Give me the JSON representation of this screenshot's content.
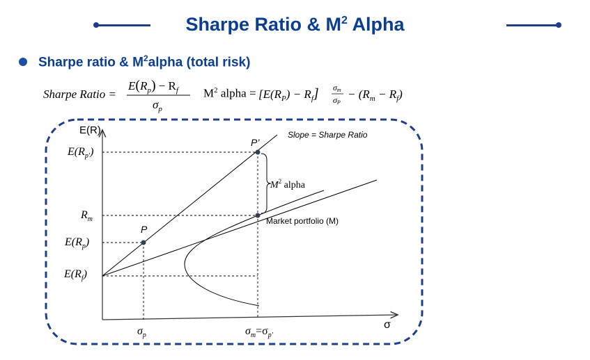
{
  "header": {
    "title_prefix": "Sharpe Ratio & M",
    "title_sup": "2",
    "title_suffix": " Alpha",
    "accent_color": "#0b3d91"
  },
  "section": {
    "heading_prefix": "Sharpe ratio & M",
    "heading_sup": "2",
    "heading_suffix": "alpha (total risk)"
  },
  "formulas": {
    "sharpe_lhs": "Sharpe Ratio =",
    "sharpe_num_E": "E",
    "sharpe_num_R": "R",
    "sharpe_num_p": "p",
    "sharpe_num_minus": "− R",
    "sharpe_num_f": "f",
    "sharpe_den": "σ",
    "sharpe_den_sub": "p",
    "m2_prefix": "M",
    "m2_sup": "2",
    "m2_suffix": " alpha =",
    "m2_bracket": "[E(R",
    "m2_bracket_sub": "P",
    "m2_bracket_mid": ") − R",
    "m2_bracket_sub2": "f",
    "m2_bracket_end": "]",
    "m2_frac_num": "σ",
    "m2_frac_num_sub": "m",
    "m2_frac_den": "σ",
    "m2_frac_den_sub": "P",
    "m2_tail": "− (R",
    "m2_tail_sub": "m",
    "m2_tail_mid": " − R",
    "m2_tail_sub2": "f",
    "m2_tail_end": ")"
  },
  "diagram": {
    "y_axis_label": "E(R)",
    "x_axis_label": "σ",
    "slope_label": "Slope = Sharpe Ratio",
    "market_label": "Market portfolio (M)",
    "point_p_label": "P",
    "point_pprime_label": "P’",
    "m2_alpha_label": "M",
    "m2_alpha_sup": "2",
    "m2_alpha_suffix": " alpha",
    "ylabel_erpprime": "E(R",
    "ylabel_erpprime_sub": "p′",
    "ylabel_erpprime_end": ")",
    "ylabel_rm": "R",
    "ylabel_rm_sub": "m",
    "ylabel_erp": "E(R",
    "ylabel_erp_sub": "p",
    "ylabel_erp_end": ")",
    "ylabel_erf": "E(R",
    "ylabel_erf_sub": "f",
    "ylabel_erf_end": ")",
    "xlabel_sp": "σ",
    "xlabel_sp_sub": "p",
    "xlabel_sm": "σ",
    "xlabel_sm_sub": "m",
    "xlabel_eq": "=σ",
    "xlabel_spp_sub": "p′",
    "border_color": "#1f3e8a"
  }
}
